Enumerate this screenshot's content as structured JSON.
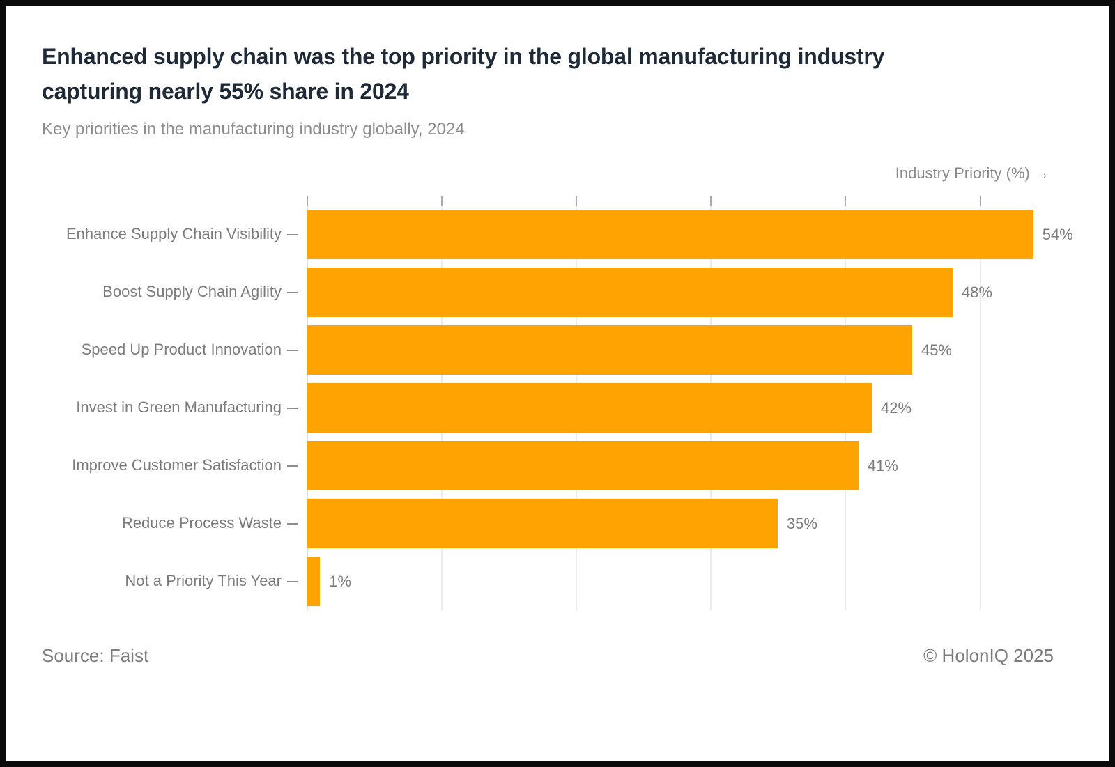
{
  "header": {
    "title_line1": "Enhanced supply chain was the top priority in the global manufacturing industry",
    "title_line2": "capturing nearly 55% share in 2024",
    "subtitle": "Key priorities in the manufacturing industry globally, 2024"
  },
  "axis": {
    "label": "Industry Priority (%) →"
  },
  "chart_data": {
    "type": "bar",
    "orientation": "horizontal",
    "title": "Enhanced supply chain was the top priority in the global manufacturing industry capturing nearly 55% share in 2024",
    "subtitle": "Key priorities in the manufacturing industry globally, 2024",
    "xlabel": "Industry Priority (%)",
    "ylabel": "",
    "categories": [
      "Enhance Supply Chain Visibility",
      "Boost Supply Chain Agility",
      "Speed Up Product Innovation",
      "Invest in Green Manufacturing",
      "Improve Customer Satisfaction",
      "Reduce Process Waste",
      "Not a Priority This Year"
    ],
    "values": [
      54,
      48,
      45,
      42,
      41,
      35,
      1
    ],
    "value_label_suffix": "%",
    "xlim": [
      0,
      58
    ],
    "gridline_values": [
      0,
      10,
      20,
      30,
      40,
      50
    ],
    "grid": true,
    "legend": "none"
  },
  "footer": {
    "source": "Source: Faist",
    "copyright": "© HolonIQ 2025"
  },
  "colors": {
    "bar": "#FDA402",
    "title": "#1e2a38",
    "muted_text": "#7c7c7c",
    "subtitle_text": "#8e8e8e",
    "gridline": "#ebebeb",
    "frame": "#0b0b0b",
    "background": "#ffffff"
  }
}
